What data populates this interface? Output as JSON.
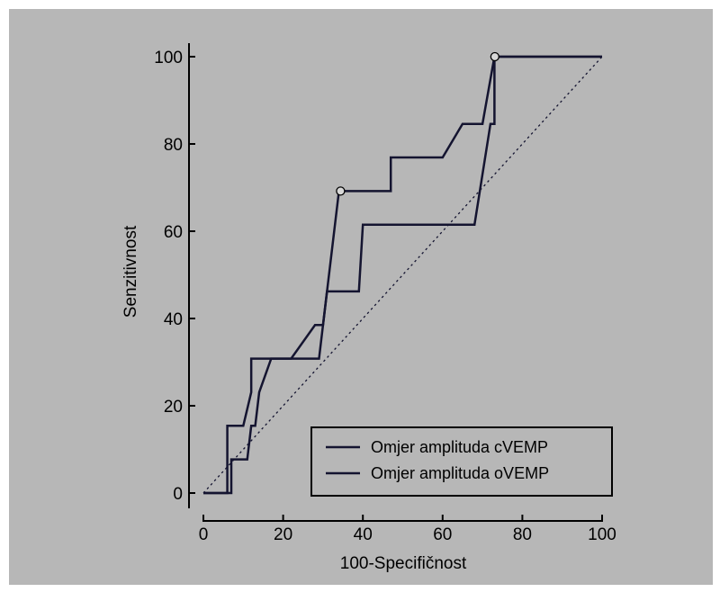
{
  "chart_data": {
    "type": "line",
    "xlabel": "100-Specifičnost",
    "ylabel": "Senzitivnost",
    "xlim": [
      0,
      100
    ],
    "ylim": [
      0,
      100
    ],
    "xticks": [
      "0",
      "20",
      "40",
      "60",
      "80",
      "100"
    ],
    "yticks": [
      "0",
      "20",
      "40",
      "60",
      "80",
      "100"
    ],
    "grid": false,
    "legend_position": "bottom-right",
    "colors": {
      "background": "#b7b7b7",
      "series": "#141430",
      "reference": "#141430"
    },
    "series": [
      {
        "name": "Omjer amplituda cVEMP",
        "x": [
          0,
          6,
          6,
          10,
          12,
          12,
          29,
          34,
          34,
          47,
          47,
          60,
          65,
          70,
          73,
          73,
          100
        ],
        "y": [
          0,
          0,
          15.4,
          15.4,
          23.1,
          30.8,
          30.8,
          69.2,
          69.2,
          69.2,
          76.9,
          76.9,
          84.6,
          84.6,
          100,
          100,
          100
        ],
        "optimal_point": [
          34.4,
          69.2
        ]
      },
      {
        "name": "Omjer amplituda oVEMP",
        "x": [
          0,
          7,
          7,
          8,
          11,
          12,
          13,
          14,
          17,
          22,
          28,
          30,
          31,
          39,
          40,
          68,
          72,
          73,
          73,
          100
        ],
        "y": [
          0,
          0,
          7.7,
          7.7,
          7.7,
          15.4,
          15.4,
          23.1,
          30.8,
          30.8,
          38.5,
          38.5,
          46.2,
          46.2,
          61.5,
          61.5,
          84.6,
          84.6,
          100,
          100
        ],
        "optimal_point": [
          73.1,
          100
        ]
      }
    ],
    "reference_line": {
      "x": [
        0,
        100
      ],
      "y": [
        0,
        100
      ],
      "style": "dotted"
    }
  }
}
